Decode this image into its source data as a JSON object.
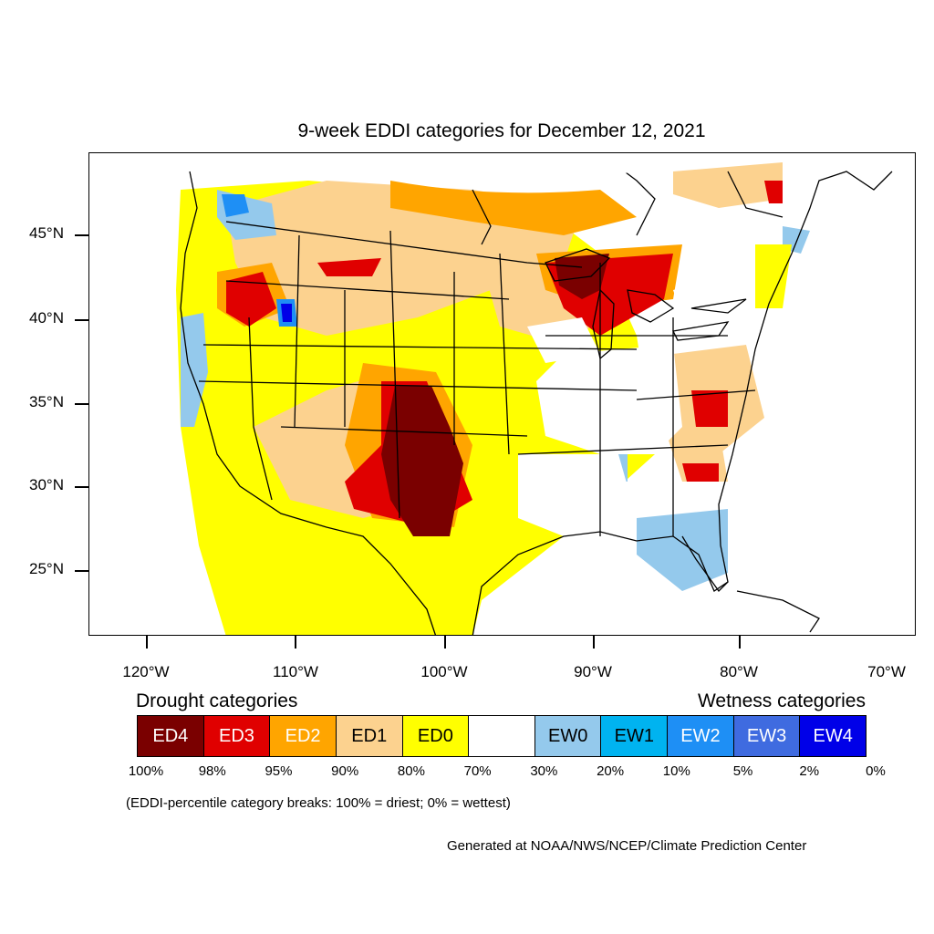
{
  "title": "9-week EDDI categories for December 12, 2021",
  "axes": {
    "lat_ticks": [
      {
        "label": "45°N",
        "value": 45
      },
      {
        "label": "40°N",
        "value": 40
      },
      {
        "label": "35°N",
        "value": 35
      },
      {
        "label": "30°N",
        "value": 30
      },
      {
        "label": "25°N",
        "value": 25
      }
    ],
    "lon_ticks": [
      {
        "label": "120°W",
        "value": -120
      },
      {
        "label": "110°W",
        "value": -110
      },
      {
        "label": "100°W",
        "value": -100
      },
      {
        "label": "90°W",
        "value": -90
      },
      {
        "label": "80°W",
        "value": -80
      },
      {
        "label": "70°W",
        "value": -70
      }
    ]
  },
  "legend": {
    "drought_heading": "Drought categories",
    "wetness_heading": "Wetness categories",
    "categories": [
      {
        "label": "ED4",
        "color": "#7a0000",
        "text_color": "#ffffff"
      },
      {
        "label": "ED3",
        "color": "#e00000",
        "text_color": "#ffffff"
      },
      {
        "label": "ED2",
        "color": "#ffa500",
        "text_color": "#ffffff"
      },
      {
        "label": "ED1",
        "color": "#fcd28f",
        "text_color": "#000000"
      },
      {
        "label": "ED0",
        "color": "#ffff00",
        "text_color": "#000000"
      },
      {
        "label": "",
        "color": "#ffffff",
        "text_color": "#000000"
      },
      {
        "label": "EW0",
        "color": "#94c9ec",
        "text_color": "#000000"
      },
      {
        "label": "EW1",
        "color": "#00b3f0",
        "text_color": "#000000"
      },
      {
        "label": "EW2",
        "color": "#1e8ff5",
        "text_color": "#ffffff"
      },
      {
        "label": "EW3",
        "color": "#3f6be0",
        "text_color": "#ffffff"
      },
      {
        "label": "EW4",
        "color": "#0000e8",
        "text_color": "#ffffff"
      }
    ],
    "breaks": [
      "100%",
      "98%",
      "95%",
      "90%",
      "80%",
      "70%",
      "30%",
      "20%",
      "10%",
      "5%",
      "2%",
      "0%"
    ]
  },
  "note": "(EDDI-percentile category breaks: 100% = driest; 0% = wettest)",
  "credit": "Generated at NOAA/NWS/NCEP/Climate Prediction Center"
}
